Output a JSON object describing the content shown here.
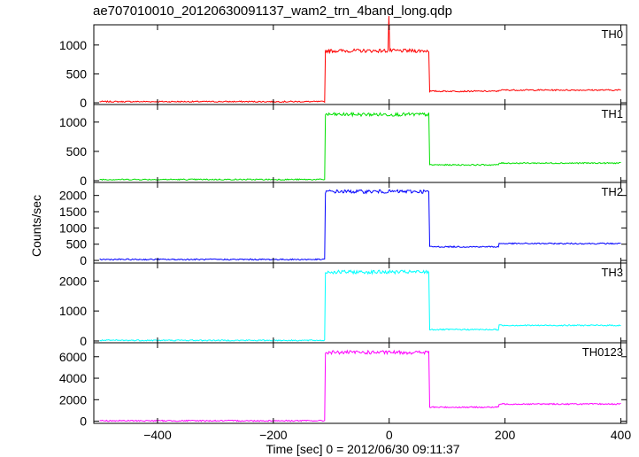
{
  "chart_data": {
    "type": "line",
    "title": "ae707010010_20120630091137_wam2_trn_4band_long.qdp",
    "xlabel": "Time [sec] 0 = 2012/06/30 09:11:37",
    "ylabel": "Counts/sec",
    "xlim": [
      -510,
      410
    ],
    "x_ticks": [
      -400,
      -200,
      0,
      200,
      400
    ],
    "x_tick_labels": [
      "−400",
      "−200",
      "0",
      "200",
      "400"
    ],
    "grid": false,
    "legend": "none",
    "panels": [
      {
        "name": "TH0",
        "color": "#ff0000",
        "ylim": [
          -30,
          1350
        ],
        "y_ticks": [
          0,
          500,
          1000
        ],
        "y_tick_labels": [
          "0",
          "500",
          "1000"
        ],
        "segments": [
          {
            "x_start": -500,
            "x_end": -110,
            "level": 20
          },
          {
            "x_start": -110,
            "x_end": 70,
            "level": 900
          },
          {
            "x_start": 70,
            "x_end": 190,
            "level": 200
          },
          {
            "x_start": 190,
            "x_end": 400,
            "level": 220
          }
        ],
        "spikes": [
          {
            "x": 0,
            "y": 1500
          }
        ]
      },
      {
        "name": "TH1",
        "color": "#00e000",
        "ylim": [
          -30,
          1300
        ],
        "y_ticks": [
          0,
          500,
          1000
        ],
        "y_tick_labels": [
          "0",
          "500",
          "1000"
        ],
        "segments": [
          {
            "x_start": -500,
            "x_end": -110,
            "level": 20
          },
          {
            "x_start": -110,
            "x_end": 70,
            "level": 1130
          },
          {
            "x_start": 70,
            "x_end": 190,
            "level": 270
          },
          {
            "x_start": 190,
            "x_end": 400,
            "level": 300
          }
        ],
        "spikes": []
      },
      {
        "name": "TH2",
        "color": "#0000ff",
        "ylim": [
          -80,
          2400
        ],
        "y_ticks": [
          0,
          500,
          1000,
          1500,
          2000
        ],
        "y_tick_labels": [
          "0",
          "500",
          "1000",
          "1500",
          "2000"
        ],
        "segments": [
          {
            "x_start": -500,
            "x_end": -110,
            "level": 30
          },
          {
            "x_start": -110,
            "x_end": 70,
            "level": 2120
          },
          {
            "x_start": 70,
            "x_end": 190,
            "level": 420
          },
          {
            "x_start": 190,
            "x_end": 400,
            "level": 520
          }
        ],
        "spikes": []
      },
      {
        "name": "TH3",
        "color": "#00ffff",
        "ylim": [
          -60,
          2600
        ],
        "y_ticks": [
          0,
          1000,
          2000
        ],
        "y_tick_labels": [
          "0",
          "1000",
          "2000"
        ],
        "segments": [
          {
            "x_start": -500,
            "x_end": -110,
            "level": 20
          },
          {
            "x_start": -110,
            "x_end": 70,
            "level": 2300
          },
          {
            "x_start": 70,
            "x_end": 190,
            "level": 380
          },
          {
            "x_start": 190,
            "x_end": 400,
            "level": 520
          }
        ],
        "spikes": []
      },
      {
        "name": "TH0123",
        "color": "#ff00ff",
        "ylim": [
          -200,
          7300
        ],
        "y_ticks": [
          0,
          2000,
          4000,
          6000
        ],
        "y_tick_labels": [
          "0",
          "2000",
          "4000",
          "6000"
        ],
        "segments": [
          {
            "x_start": -500,
            "x_end": -110,
            "level": 40
          },
          {
            "x_start": -110,
            "x_end": 70,
            "level": 6400
          },
          {
            "x_start": 70,
            "x_end": 190,
            "level": 1300
          },
          {
            "x_start": 190,
            "x_end": 400,
            "level": 1600
          }
        ],
        "spikes": []
      }
    ]
  }
}
